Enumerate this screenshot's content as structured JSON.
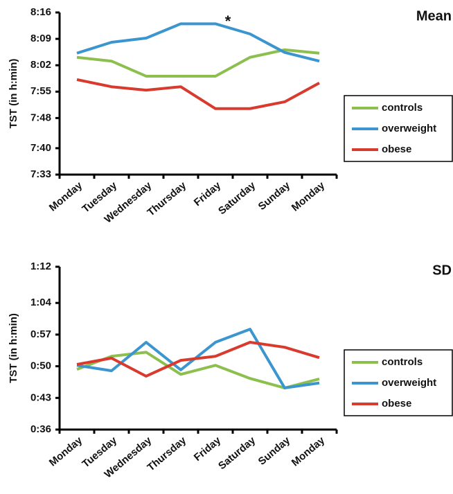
{
  "chart_data": [
    {
      "type": "line",
      "title": "Mean",
      "ylabel": "TST (in h:min)",
      "annotation": "*",
      "categories": [
        "Monday",
        "Tuesday",
        "Wednesday",
        "Thursday",
        "Friday",
        "Saturday",
        "Sunday",
        "Monday"
      ],
      "series": [
        {
          "name": "controls",
          "color": "#8cbf4e",
          "values": [
            484.1,
            483.1,
            479.1,
            479.1,
            479.1,
            484.1,
            486.1,
            485.2
          ]
        },
        {
          "name": "overweight",
          "color": "#3b95cf",
          "values": [
            485.2,
            488.1,
            489.2,
            493,
            493,
            490.3,
            485.4,
            483.1
          ]
        },
        {
          "name": "obese",
          "color": "#d93a2e",
          "values": [
            478.2,
            476.3,
            475.4,
            476.3,
            470.5,
            470.5,
            472.3,
            477.3
          ]
        }
      ],
      "ylim": [
        453,
        496
      ],
      "yticks": [
        {
          "value": 453,
          "label": "7:33"
        },
        {
          "value": 460,
          "label": "7:40"
        },
        {
          "value": 468,
          "label": "7:48"
        },
        {
          "value": 475,
          "label": "7:55"
        },
        {
          "value": 482,
          "label": "8:02"
        },
        {
          "value": 489,
          "label": "8:09"
        },
        {
          "value": 496,
          "label": "8:16"
        }
      ],
      "legend": "right",
      "grid": false
    },
    {
      "type": "line",
      "title": "SD",
      "ylabel": "TST (in h:min)",
      "categories": [
        "Monday",
        "Tuesday",
        "Wednesday",
        "Thursday",
        "Friday",
        "Saturday",
        "Sunday",
        "Monday"
      ],
      "series": [
        {
          "name": "controls",
          "color": "#8cbf4e",
          "values": [
            49.3,
            52.2,
            53.1,
            48.2,
            50.2,
            47.3,
            45.2,
            47.2
          ]
        },
        {
          "name": "overweight",
          "color": "#3b95cf",
          "values": [
            50.2,
            49.0,
            55.3,
            49.2,
            55.3,
            58.2,
            45.2,
            46.3
          ]
        },
        {
          "name": "obese",
          "color": "#d93a2e",
          "values": [
            50.4,
            51.8,
            47.8,
            51.3,
            52.2,
            55.3,
            54.2,
            51.9
          ]
        }
      ],
      "ylim": [
        36,
        72
      ],
      "yticks": [
        {
          "value": 36,
          "label": "0:36"
        },
        {
          "value": 43,
          "label": "0:43"
        },
        {
          "value": 50,
          "label": "0:50"
        },
        {
          "value": 57,
          "label": "0:57"
        },
        {
          "value": 64,
          "label": "1:04"
        },
        {
          "value": 72,
          "label": "1:12"
        }
      ],
      "legend": "right",
      "grid": false
    }
  ]
}
